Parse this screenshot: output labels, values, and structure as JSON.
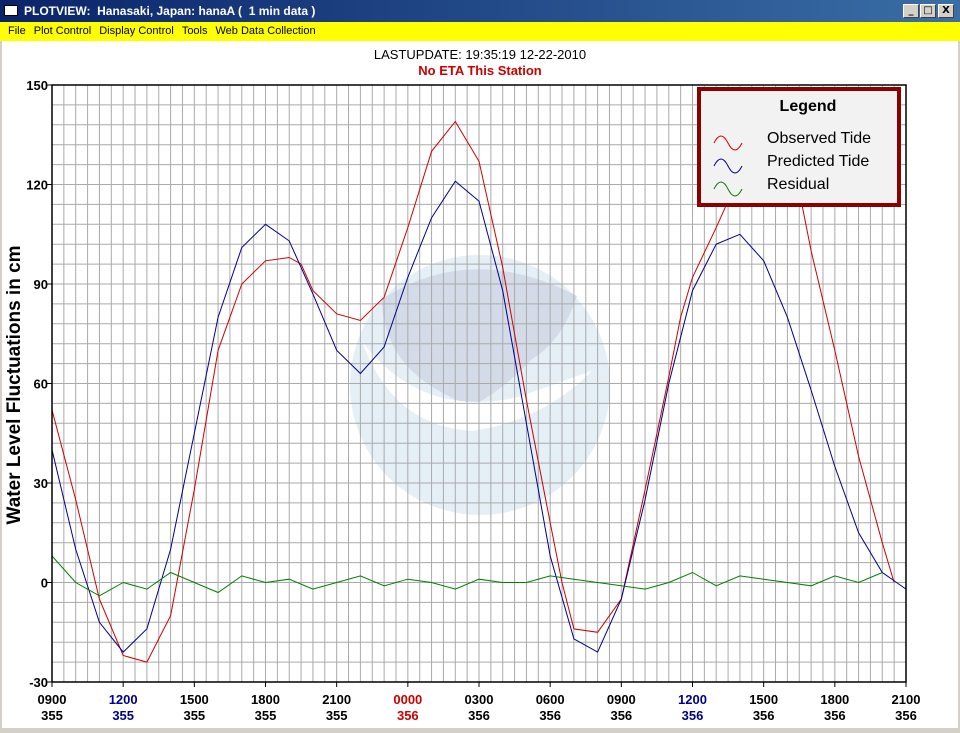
{
  "window": {
    "title": "PLOTVIEW:  Hanasaki, Japan: hanaA (  1 min data )",
    "controls": [
      "_",
      "□",
      "X"
    ]
  },
  "menu": [
    "File",
    "Plot Control",
    "Display Control",
    "Tools",
    "Web Data Collection"
  ],
  "header": {
    "last_update": "LASTUPDATE: 19:35:19  12-22-2010",
    "eta_status": "No ETA This Station"
  },
  "chart_data": {
    "type": "line",
    "ylabel": "Water Level Fluctuations in cm",
    "ylim": [
      -30,
      150
    ],
    "yticks": [
      "150",
      "120",
      "90",
      "60",
      "30",
      "0",
      "-30"
    ],
    "grid": true,
    "legend": {
      "title": "Legend",
      "placement": "top-right",
      "entries": [
        "Observed Tide",
        "Predicted Tide",
        "Residual"
      ]
    },
    "x_hours_range": [
      0,
      36
    ],
    "xticks": [
      {
        "time": "0900",
        "day": "355",
        "time_color": "#000000",
        "day_color": "#000000"
      },
      {
        "time": "1200",
        "day": "355",
        "time_color": "#00008b",
        "day_color": "#00008b"
      },
      {
        "time": "1500",
        "day": "355",
        "time_color": "#000000",
        "day_color": "#000000"
      },
      {
        "time": "1800",
        "day": "355",
        "time_color": "#000000",
        "day_color": "#000000"
      },
      {
        "time": "2100",
        "day": "355",
        "time_color": "#000000",
        "day_color": "#000000"
      },
      {
        "time": "0000",
        "day": "356",
        "time_color": "#cc0000",
        "day_color": "#cc0000"
      },
      {
        "time": "0300",
        "day": "356",
        "time_color": "#000000",
        "day_color": "#000000"
      },
      {
        "time": "0600",
        "day": "356",
        "time_color": "#000000",
        "day_color": "#000000"
      },
      {
        "time": "0900",
        "day": "356",
        "time_color": "#000000",
        "day_color": "#000000"
      },
      {
        "time": "1200",
        "day": "356",
        "time_color": "#00008b",
        "day_color": "#00008b"
      },
      {
        "time": "1500",
        "day": "356",
        "time_color": "#000000",
        "day_color": "#000000"
      },
      {
        "time": "1800",
        "day": "356",
        "time_color": "#000000",
        "day_color": "#000000"
      },
      {
        "time": "2100",
        "day": "356",
        "time_color": "#000000",
        "day_color": "#000000"
      }
    ],
    "series": [
      {
        "name": "Observed Tide",
        "color": "#cc0000",
        "x": [
          0,
          1,
          2,
          3,
          4,
          5,
          6,
          7,
          8,
          9,
          10,
          10.5,
          11,
          12,
          13,
          14,
          15,
          16,
          17,
          18,
          19,
          20,
          21,
          21.5,
          22,
          23,
          24,
          25,
          26,
          26.5,
          27,
          28,
          29,
          30,
          31,
          31.5,
          32,
          33,
          34,
          35,
          35.5
        ],
        "y": [
          52,
          25,
          -5,
          -22,
          -24,
          -10,
          28,
          70,
          90,
          97,
          98,
          96,
          88,
          81,
          79,
          86,
          107,
          130,
          139,
          127,
          95,
          55,
          18,
          0,
          -14,
          -15,
          -5,
          28,
          62,
          80,
          92,
          107,
          123,
          132,
          128,
          118,
          100,
          70,
          38,
          12,
          0
        ]
      },
      {
        "name": "Predicted Tide",
        "color": "#00008b",
        "x": [
          0,
          1,
          2,
          3,
          4,
          5,
          6,
          7,
          8,
          9,
          10,
          11,
          12,
          13,
          14,
          15,
          16,
          17,
          18,
          19,
          20,
          21,
          22,
          23,
          24,
          25,
          26,
          27,
          28,
          29,
          30,
          31,
          32,
          33,
          34,
          35,
          36
        ],
        "y": [
          40,
          10,
          -12,
          -21,
          -14,
          10,
          45,
          80,
          101,
          108,
          103,
          87,
          70,
          63,
          71,
          92,
          110,
          121,
          115,
          88,
          48,
          8,
          -17,
          -21,
          -5,
          25,
          60,
          88,
          102,
          105,
          97,
          80,
          58,
          35,
          15,
          3,
          -2
        ]
      },
      {
        "name": "Residual",
        "color": "#008000",
        "x": [
          0,
          1,
          2,
          3,
          4,
          5,
          6,
          7,
          8,
          9,
          10,
          11,
          12,
          13,
          14,
          15,
          16,
          17,
          18,
          19,
          20,
          21,
          22,
          23,
          24,
          25,
          26,
          27,
          28,
          29,
          30,
          31,
          32,
          33,
          34,
          35
        ],
        "y": [
          8,
          0,
          -4,
          0,
          -2,
          3,
          0,
          -3,
          2,
          0,
          1,
          -2,
          0,
          2,
          -1,
          1,
          0,
          -2,
          1,
          0,
          0,
          2,
          1,
          0,
          -1,
          -2,
          0,
          3,
          -1,
          2,
          1,
          0,
          -1,
          2,
          0,
          3
        ]
      }
    ]
  }
}
